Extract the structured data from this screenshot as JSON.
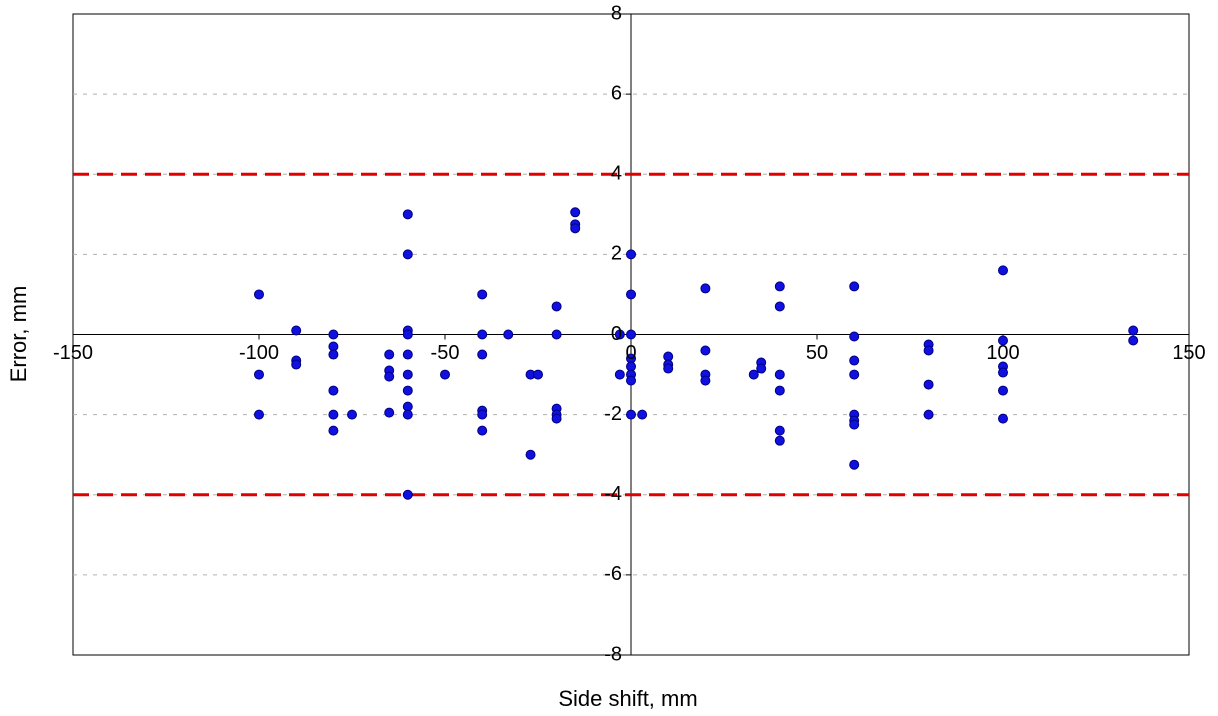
{
  "chart_data": {
    "type": "scatter",
    "title": "",
    "xlabel": "Side shift, mm",
    "ylabel": "Error, mm",
    "xlim": [
      -150,
      150
    ],
    "ylim": [
      -8,
      8
    ],
    "x_ticks": [
      -150,
      -100,
      -50,
      0,
      50,
      100,
      150
    ],
    "y_ticks": [
      -8,
      -6,
      -4,
      -2,
      0,
      2,
      4,
      6,
      8
    ],
    "x_tick_labels": [
      "-150",
      "-100",
      "-50",
      "0",
      "50",
      "100",
      "150"
    ],
    "y_tick_labels": [
      "-8",
      "-6",
      "-4",
      "-2",
      "0",
      "2",
      "4",
      "6",
      "8"
    ],
    "grid": "horizontal dashed gray",
    "marker_color": "#1010e0",
    "marker_edge_color": "#000080",
    "reference_lines": [
      {
        "y": 4,
        "style": "dashed",
        "color": "#e00000"
      },
      {
        "y": -4,
        "style": "dashed",
        "color": "#e00000"
      }
    ],
    "series": [
      {
        "points": [
          {
            "x": -100,
            "y": 1.0
          },
          {
            "x": -100,
            "y": -1.0
          },
          {
            "x": -100,
            "y": -2.0
          },
          {
            "x": -90,
            "y": 0.1
          },
          {
            "x": -90,
            "y": -0.65
          },
          {
            "x": -90,
            "y": -0.75
          },
          {
            "x": -80,
            "y": 0.0
          },
          {
            "x": -80,
            "y": -0.3
          },
          {
            "x": -80,
            "y": -0.5
          },
          {
            "x": -80,
            "y": -1.4
          },
          {
            "x": -80,
            "y": -2.0
          },
          {
            "x": -80,
            "y": -2.4
          },
          {
            "x": -75,
            "y": -2.0
          },
          {
            "x": -65,
            "y": -0.5
          },
          {
            "x": -65,
            "y": -0.9
          },
          {
            "x": -65,
            "y": -1.05
          },
          {
            "x": -65,
            "y": -1.95
          },
          {
            "x": -60,
            "y": 3.0
          },
          {
            "x": -60,
            "y": 2.0
          },
          {
            "x": -60,
            "y": 0.1
          },
          {
            "x": -60,
            "y": 0.0
          },
          {
            "x": -60,
            "y": -0.5
          },
          {
            "x": -60,
            "y": -1.0
          },
          {
            "x": -60,
            "y": -1.4
          },
          {
            "x": -60,
            "y": -1.8
          },
          {
            "x": -60,
            "y": -2.0
          },
          {
            "x": -60,
            "y": -4.0
          },
          {
            "x": -50,
            "y": -1.0
          },
          {
            "x": -40,
            "y": 1.0
          },
          {
            "x": -40,
            "y": 0.0
          },
          {
            "x": -40,
            "y": -0.5
          },
          {
            "x": -40,
            "y": -1.9
          },
          {
            "x": -40,
            "y": -2.0
          },
          {
            "x": -40,
            "y": -2.4
          },
          {
            "x": -33,
            "y": 0.0
          },
          {
            "x": -27,
            "y": -1.0
          },
          {
            "x": -27,
            "y": -3.0
          },
          {
            "x": -25,
            "y": -1.0
          },
          {
            "x": -20,
            "y": 0.7
          },
          {
            "x": -20,
            "y": 0.0
          },
          {
            "x": -20,
            "y": -1.85
          },
          {
            "x": -20,
            "y": -2.0
          },
          {
            "x": -20,
            "y": -2.1
          },
          {
            "x": -15,
            "y": 3.05
          },
          {
            "x": -15,
            "y": 2.75
          },
          {
            "x": -15,
            "y": 2.65
          },
          {
            "x": -3,
            "y": 0.0
          },
          {
            "x": -3,
            "y": -1.0
          },
          {
            "x": 0,
            "y": 2.0
          },
          {
            "x": 0,
            "y": 1.0
          },
          {
            "x": 0,
            "y": 0.0
          },
          {
            "x": 0,
            "y": -0.6
          },
          {
            "x": 0,
            "y": -0.8
          },
          {
            "x": 0,
            "y": -1.0
          },
          {
            "x": 0,
            "y": -1.15
          },
          {
            "x": 0,
            "y": -2.0
          },
          {
            "x": 3,
            "y": -2.0
          },
          {
            "x": 10,
            "y": -0.55
          },
          {
            "x": 10,
            "y": -0.75
          },
          {
            "x": 10,
            "y": -0.85
          },
          {
            "x": 20,
            "y": 1.15
          },
          {
            "x": 20,
            "y": -0.4
          },
          {
            "x": 20,
            "y": -1.0
          },
          {
            "x": 20,
            "y": -1.15
          },
          {
            "x": 33,
            "y": -1.0
          },
          {
            "x": 35,
            "y": -0.7
          },
          {
            "x": 35,
            "y": -0.85
          },
          {
            "x": 40,
            "y": 1.2
          },
          {
            "x": 40,
            "y": 0.7
          },
          {
            "x": 40,
            "y": -1.0
          },
          {
            "x": 40,
            "y": -1.4
          },
          {
            "x": 40,
            "y": -2.4
          },
          {
            "x": 40,
            "y": -2.65
          },
          {
            "x": 60,
            "y": 1.2
          },
          {
            "x": 60,
            "y": -0.05
          },
          {
            "x": 60,
            "y": -0.65
          },
          {
            "x": 60,
            "y": -1.0
          },
          {
            "x": 60,
            "y": -2.0
          },
          {
            "x": 60,
            "y": -2.15
          },
          {
            "x": 60,
            "y": -2.25
          },
          {
            "x": 60,
            "y": -3.25
          },
          {
            "x": 80,
            "y": -0.25
          },
          {
            "x": 80,
            "y": -0.4
          },
          {
            "x": 80,
            "y": -1.25
          },
          {
            "x": 80,
            "y": -2.0
          },
          {
            "x": 100,
            "y": 1.6
          },
          {
            "x": 100,
            "y": -0.15
          },
          {
            "x": 100,
            "y": -0.8
          },
          {
            "x": 100,
            "y": -0.95
          },
          {
            "x": 100,
            "y": -1.4
          },
          {
            "x": 100,
            "y": -2.1
          },
          {
            "x": 135,
            "y": 0.1
          },
          {
            "x": 135,
            "y": -0.15
          }
        ]
      }
    ]
  }
}
